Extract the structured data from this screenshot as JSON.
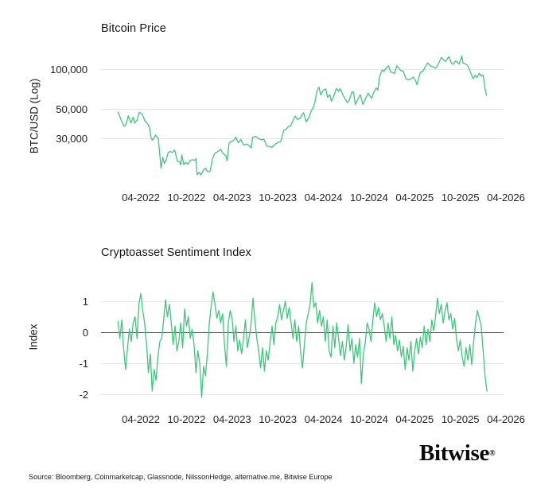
{
  "page": {
    "background": "#ffffff"
  },
  "colors": {
    "line": "#3FC57C",
    "grid": "#E6E6E6",
    "zero_line": "#4D4D4D",
    "title_text": "#141414",
    "tick_text": "#252525"
  },
  "x_axis": {
    "tick_labels": [
      "04-2022",
      "10-2022",
      "04-2023",
      "10-2023",
      "04-2024",
      "10-2024",
      "04-2025",
      "10-2025",
      "04-2026"
    ],
    "t_unit": "months since 2022-01",
    "first_tick_t": 3,
    "tick_interval_months": 6
  },
  "footer": {
    "source_text": "Source: Bloomberg, Coinmarketcap, Glassnode, NilssonHedge, alternative.me, Bitwise Europe"
  },
  "brand": {
    "name": "Bitwise",
    "registered_mark": "®"
  },
  "chart_data": [
    {
      "type": "line",
      "title": "Bitcoin Price",
      "ylabel": "BTC/USD (Log)",
      "yscale": "log",
      "grid": true,
      "legend": "none",
      "yticks": [
        {
          "label": "100,000",
          "value": 100000
        },
        {
          "label": "50,000",
          "value": 50000
        },
        {
          "label": "30,000",
          "value": 30000
        }
      ],
      "series": [
        {
          "name": "BTC/USD",
          "points": [
            [
              0,
              47300
            ],
            [
              0.4,
              41500
            ],
            [
              0.8,
              36900
            ],
            [
              1.1,
              38500
            ],
            [
              1.35,
              44400
            ],
            [
              1.7,
              39200
            ],
            [
              2.0,
              43200
            ],
            [
              2.2,
              39000
            ],
            [
              2.5,
              41000
            ],
            [
              2.8,
              47100
            ],
            [
              3.2,
              45500
            ],
            [
              3.5,
              41000
            ],
            [
              3.9,
              38600
            ],
            [
              4.15,
              36000
            ],
            [
              4.35,
              30100
            ],
            [
              4.55,
              29000
            ],
            [
              4.75,
              30300
            ],
            [
              4.95,
              31700
            ],
            [
              5.3,
              29900
            ],
            [
              5.55,
              20800
            ],
            [
              5.65,
              17800
            ],
            [
              5.9,
              21500
            ],
            [
              6.1,
              19300
            ],
            [
              6.35,
              20600
            ],
            [
              6.6,
              23300
            ],
            [
              6.9,
              23800
            ],
            [
              7.15,
              23300
            ],
            [
              7.45,
              24400
            ],
            [
              7.8,
              20100
            ],
            [
              8.1,
              19800
            ],
            [
              8.25,
              18800
            ],
            [
              8.4,
              22400
            ],
            [
              8.65,
              18900
            ],
            [
              8.9,
              19600
            ],
            [
              9.2,
              19100
            ],
            [
              9.5,
              20300
            ],
            [
              9.8,
              20600
            ],
            [
              10.1,
              20400
            ],
            [
              10.25,
              21000
            ],
            [
              10.4,
              15900
            ],
            [
              10.7,
              16500
            ],
            [
              10.9,
              15800
            ],
            [
              11.2,
              17100
            ],
            [
              11.5,
              17800
            ],
            [
              11.8,
              16700
            ],
            [
              12.1,
              16800
            ],
            [
              12.45,
              21000
            ],
            [
              12.7,
              23000
            ],
            [
              13.0,
              23500
            ],
            [
              13.5,
              24700
            ],
            [
              13.8,
              23000
            ],
            [
              14.2,
              22000
            ],
            [
              14.35,
              20200
            ],
            [
              14.6,
              27500
            ],
            [
              14.95,
              28400
            ],
            [
              15.3,
              29200
            ],
            [
              15.5,
              30600
            ],
            [
              15.8,
              27700
            ],
            [
              16.15,
              29300
            ],
            [
              16.5,
              26600
            ],
            [
              16.9,
              27100
            ],
            [
              17.2,
              26500
            ],
            [
              17.5,
              25300
            ],
            [
              17.7,
              30500
            ],
            [
              18.1,
              31000
            ],
            [
              18.45,
              29900
            ],
            [
              18.8,
              29200
            ],
            [
              19.2,
              29400
            ],
            [
              19.55,
              26100
            ],
            [
              19.9,
              26000
            ],
            [
              20.2,
              25500
            ],
            [
              20.5,
              26500
            ],
            [
              20.9,
              27600
            ],
            [
              21.4,
              28300
            ],
            [
              21.8,
              34600
            ],
            [
              22.1,
              35000
            ],
            [
              22.4,
              36800
            ],
            [
              22.7,
              37300
            ],
            [
              23.1,
              42000
            ],
            [
              23.3,
              44100
            ],
            [
              23.6,
              41500
            ],
            [
              23.95,
              42600
            ],
            [
              24.2,
              45000
            ],
            [
              24.4,
              46700
            ],
            [
              24.75,
              39900
            ],
            [
              25.1,
              43000
            ],
            [
              25.4,
              48200
            ],
            [
              25.7,
              51800
            ],
            [
              25.9,
              57000
            ],
            [
              26.15,
              68300
            ],
            [
              26.4,
              73100
            ],
            [
              26.65,
              63800
            ],
            [
              27.0,
              69600
            ],
            [
              27.3,
              70800
            ],
            [
              27.55,
              61300
            ],
            [
              27.85,
              64000
            ],
            [
              28.05,
              57300
            ],
            [
              28.4,
              63200
            ],
            [
              28.7,
              71400
            ],
            [
              29.0,
              67800
            ],
            [
              29.2,
              71100
            ],
            [
              29.55,
              64100
            ],
            [
              29.8,
              60300
            ],
            [
              30.15,
              55900
            ],
            [
              30.4,
              58200
            ],
            [
              30.75,
              67500
            ],
            [
              30.95,
              66800
            ],
            [
              31.2,
              54000
            ],
            [
              31.55,
              59400
            ],
            [
              31.85,
              64200
            ],
            [
              32.2,
              54000
            ],
            [
              32.55,
              60200
            ],
            [
              32.9,
              65800
            ],
            [
              33.15,
              62100
            ],
            [
              33.35,
              60300
            ],
            [
              33.65,
              67400
            ],
            [
              33.95,
              72100
            ],
            [
              34.15,
              69400
            ],
            [
              34.4,
              88700
            ],
            [
              34.75,
              98900
            ],
            [
              34.95,
              96400
            ],
            [
              35.2,
              101100
            ],
            [
              35.55,
              106100
            ],
            [
              35.85,
              95200
            ],
            [
              36.1,
              94400
            ],
            [
              36.35,
              92500
            ],
            [
              36.65,
              106000
            ],
            [
              36.95,
              101300
            ],
            [
              37.15,
              97900
            ],
            [
              37.5,
              96500
            ],
            [
              37.85,
              84700
            ],
            [
              38.15,
              83100
            ],
            [
              38.5,
              84400
            ],
            [
              38.8,
              87300
            ],
            [
              39.1,
              82400
            ],
            [
              39.3,
              76300
            ],
            [
              39.75,
              94700
            ],
            [
              40.1,
              96500
            ],
            [
              40.35,
              103200
            ],
            [
              40.7,
              111700
            ],
            [
              41.1,
              105800
            ],
            [
              41.45,
              104200
            ],
            [
              41.75,
              101500
            ],
            [
              42.1,
              108800
            ],
            [
              42.5,
              123000
            ],
            [
              42.8,
              117500
            ],
            [
              43.05,
              114200
            ],
            [
              43.5,
              124400
            ],
            [
              43.85,
              110800
            ],
            [
              44.05,
              109100
            ],
            [
              44.4,
              115800
            ],
            [
              44.65,
              112300
            ],
            [
              44.85,
              109500
            ],
            [
              45.2,
              126200
            ],
            [
              45.35,
              111500
            ],
            [
              45.65,
              110100
            ],
            [
              45.95,
              106800
            ],
            [
              46.2,
              99500
            ],
            [
              46.45,
              91300
            ],
            [
              46.7,
              84600
            ],
            [
              46.95,
              90200
            ],
            [
              47.2,
              86500
            ],
            [
              47.5,
              93100
            ],
            [
              47.8,
              88400
            ],
            [
              48.0,
              90500
            ],
            [
              48.15,
              79000
            ],
            [
              48.3,
              68500
            ],
            [
              48.45,
              63400
            ]
          ]
        }
      ]
    },
    {
      "type": "line",
      "title": "Cryptoasset Sentiment Index",
      "ylabel": "Index",
      "yscale": "linear",
      "grid": true,
      "zero_line": true,
      "legend": "none",
      "yticks": [
        {
          "label": "1",
          "value": 1
        },
        {
          "label": "0",
          "value": 0
        },
        {
          "label": "-1",
          "value": -1
        },
        {
          "label": "-2",
          "value": -2
        }
      ],
      "series": [
        {
          "name": "Cryptoasset Sentiment Index",
          "t_start": 0,
          "t_step": 0.25,
          "values": [
            0.35,
            -0.2,
            0.4,
            -0.55,
            -1.2,
            -0.5,
            0.1,
            -0.3,
            0.3,
            0.5,
            -0.2,
            0.9,
            1.25,
            0.7,
            0.3,
            -0.4,
            -1.3,
            -0.7,
            -1.9,
            -1.2,
            -1.55,
            -0.8,
            -0.3,
            -0.2,
            0.4,
            1.05,
            0.5,
            0.9,
            0.3,
            -0.4,
            0.2,
            -0.6,
            -0.3,
            0.3,
            -0.5,
            0.75,
            0.2,
            0.5,
            -0.2,
            0.1,
            -0.4,
            -1.3,
            -0.6,
            -1.0,
            -2.1,
            -1.1,
            -1.4,
            -0.7,
            0.3,
            0.85,
            1.3,
            0.9,
            0.45,
            0.7,
            0.3,
            0.6,
            -0.4,
            -1.1,
            0.3,
            0.7,
            0.45,
            -0.3,
            0.2,
            -0.6,
            -0.25,
            -0.7,
            -0.2,
            0.4,
            -0.5,
            -0.15,
            0.3,
            1.1,
            0.4,
            -0.2,
            -0.6,
            -1.15,
            -0.5,
            -1.25,
            -0.6,
            -0.9,
            -0.3,
            0.2,
            -0.4,
            0.3,
            0.5,
            0.9,
            0.4,
            0.7,
            1.0,
            0.45,
            0.8,
            0.3,
            -0.2,
            0.4,
            -0.3,
            0.2,
            -0.6,
            -1.15,
            -0.4,
            0.3,
            0.6,
            0.9,
            1.6,
            0.8,
            0.95,
            0.3,
            0.7,
            0.2,
            0.5,
            -0.3,
            0.4,
            -0.6,
            -0.8,
            0.2,
            -0.5,
            0.3,
            -0.2,
            -0.75,
            -0.3,
            -0.9,
            -0.45,
            0.25,
            -0.6,
            -0.2,
            -1.0,
            -0.4,
            -0.8,
            -0.2,
            -1.65,
            -0.7,
            -0.35,
            0.3,
            0.1,
            -0.3,
            0.4,
            0.95,
            0.5,
            0.8,
            0.4,
            0.6,
            0.2,
            -0.3,
            0.3,
            -0.2,
            0.5,
            -0.4,
            -0.1,
            -0.6,
            -0.25,
            -0.8,
            -0.45,
            -1.2,
            -0.5,
            -0.9,
            -0.3,
            -1.25,
            -0.6,
            -0.2,
            -0.7,
            -0.15,
            -0.5,
            0.2,
            -0.4,
            0.1,
            -0.3,
            0.4,
            0.05,
            0.5,
            1.1,
            0.6,
            0.9,
            0.3,
            0.7,
            0.95,
            0.4,
            0.6,
            0.1,
            0.45,
            -0.2,
            -0.6,
            -0.25,
            -0.8,
            -1.1,
            -0.5,
            -0.9,
            -0.4,
            -1.05,
            -0.3,
            0.3,
            0.7,
            0.45,
            0.2,
            -0.6,
            -1.4,
            -1.9
          ]
        }
      ]
    }
  ]
}
